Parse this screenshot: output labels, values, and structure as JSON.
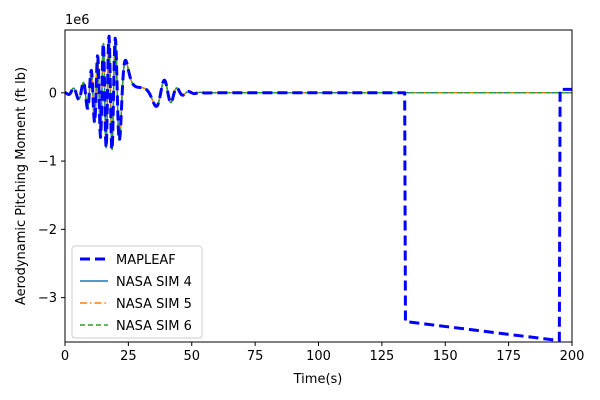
{
  "chart_data": {
    "type": "line",
    "xlabel": "Time(s)",
    "ylabel": "Aerodynamic Pitching Moment (ft lb)",
    "y_offset_text": "1e6",
    "xlim": [
      0,
      200
    ],
    "ylim": [
      -3.65,
      0.92
    ],
    "y_unit_multiplier": 1000000,
    "x_ticks": [
      0,
      25,
      50,
      75,
      100,
      125,
      150,
      175,
      200
    ],
    "y_ticks": [
      0,
      -1,
      -2,
      -3
    ],
    "y_tick_labels": [
      "0",
      "−1",
      "−2",
      "−3"
    ],
    "legend_position": "lower-left",
    "grid": false,
    "series": [
      {
        "name": "MAPLEAF",
        "color": "#0000ff",
        "dash": "10,5",
        "width": 3,
        "x": [
          0,
          60,
          134,
          134.3,
          195,
          195.3,
          200
        ],
        "y": [
          0,
          0,
          0,
          -3.35,
          -3.63,
          0.05,
          0.05
        ]
      },
      {
        "name": "NASA SIM 4",
        "color": "#1f77b4",
        "dash": "",
        "width": 1.5,
        "x": [
          0,
          55,
          200
        ],
        "y": [
          0,
          0,
          0
        ]
      },
      {
        "name": "NASA SIM 5",
        "color": "#ff7f0e",
        "dash": "7,3,1.5,3",
        "width": 1.5,
        "x": [
          0,
          55,
          200
        ],
        "y": [
          0,
          0,
          0
        ]
      },
      {
        "name": "NASA SIM 6",
        "color": "#2ca02c",
        "dash": "5,3",
        "width": 1.5,
        "x": [
          0,
          55,
          200
        ],
        "y": [
          0,
          0,
          0
        ]
      }
    ]
  }
}
